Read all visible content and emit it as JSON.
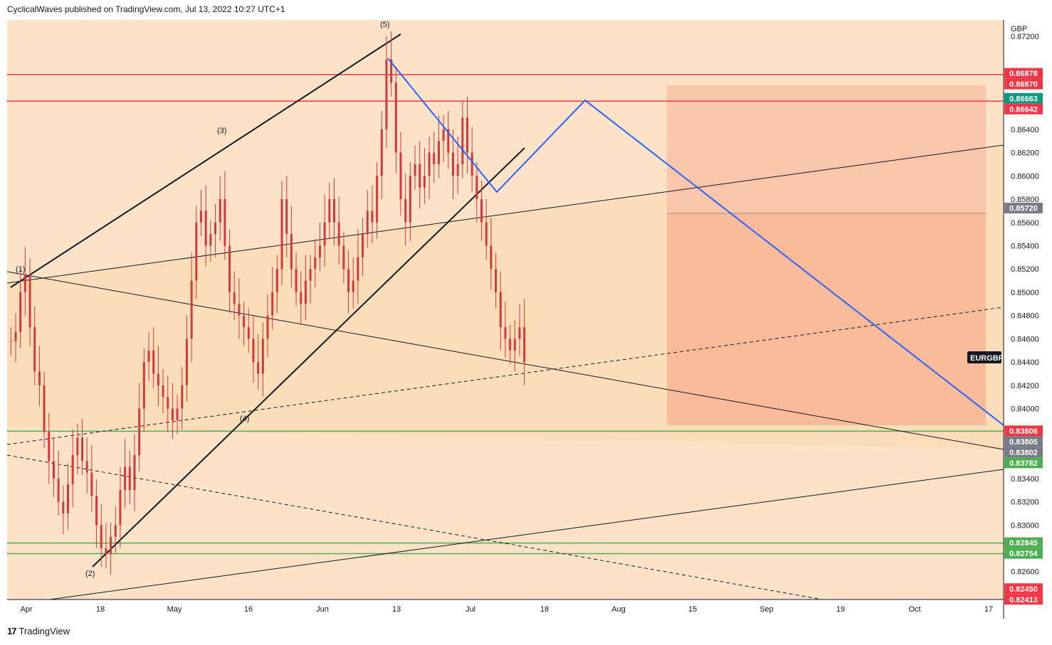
{
  "header": {
    "publisher": "CyclicalWaves published on TradingView.com, Jul 13, 2022 10:27 UTC+1"
  },
  "footer": {
    "brand": "TradingView",
    "logo_glyph": "17"
  },
  "chart_data": {
    "type": "candlestick",
    "symbol": "EURGBP",
    "currency": "GBP",
    "y_range": [
      0.8236,
      0.8734
    ],
    "y_ticks": [
      "0.87200",
      "0.86400",
      "0.86200",
      "0.86000",
      "0.85800",
      "0.85600",
      "0.85400",
      "0.85200",
      "0.85000",
      "0.84800",
      "0.84600",
      "0.84400",
      "0.84200",
      "0.84000",
      "0.83400",
      "0.83200",
      "0.83000",
      "0.82600"
    ],
    "x_ticks": [
      "Apr",
      "18",
      "May",
      "16",
      "Jun",
      "13",
      "Jul",
      "18",
      "Aug",
      "15",
      "Sep",
      "19",
      "Oct",
      "17"
    ],
    "price_badges": [
      {
        "label": "0.86878",
        "color": "#f23645"
      },
      {
        "label": "0.86870",
        "color": "#f23645"
      },
      {
        "label": "0.86663",
        "color": "#089981"
      },
      {
        "label": "0.86642",
        "color": "#f23645"
      },
      {
        "label": "0.85720",
        "color": "#787b86"
      },
      {
        "label": "0.83806",
        "color": "#f23645"
      },
      {
        "label": "0.83805",
        "color": "#787b86"
      },
      {
        "label": "0.83802",
        "color": "#787b86"
      },
      {
        "label": "0.83782",
        "color": "#4caf50"
      },
      {
        "label": "0.82845",
        "color": "#4caf50"
      },
      {
        "label": "0.82754",
        "color": "#4caf50"
      },
      {
        "label": "0.82450",
        "color": "#f23645"
      },
      {
        "label": "0.82413",
        "color": "#f23645"
      }
    ],
    "horizontal_levels": [
      {
        "value": 0.8687,
        "color": "#f23645"
      },
      {
        "value": 0.86642,
        "color": "#f23645"
      },
      {
        "value": 0.83806,
        "color": "#4caf50"
      },
      {
        "value": 0.82845,
        "color": "#4caf50"
      },
      {
        "value": 0.82754,
        "color": "#4caf50"
      }
    ],
    "wave_labels": [
      "(1)",
      "(2)",
      "(3)",
      "(4)",
      "(5)"
    ],
    "symbol_tag": "EURGBP",
    "colors": {
      "candle": "#d23a3a",
      "background_band": "#fce3c8",
      "target_zone": "#f9a98b",
      "projection": "#2962ff"
    },
    "candles_close_path": [
      0.8458,
      0.8466,
      0.85,
      0.8515,
      0.847,
      0.8432,
      0.842,
      0.838,
      0.8355,
      0.834,
      0.832,
      0.831,
      0.8335,
      0.836,
      0.8375,
      0.8355,
      0.8345,
      0.8325,
      0.83,
      0.828,
      0.8275,
      0.829,
      0.83,
      0.833,
      0.835,
      0.833,
      0.836,
      0.84,
      0.844,
      0.845,
      0.843,
      0.842,
      0.841,
      0.84,
      0.839,
      0.84,
      0.842,
      0.846,
      0.851,
      0.856,
      0.857,
      0.854,
      0.855,
      0.856,
      0.858,
      0.854,
      0.85,
      0.849,
      0.848,
      0.847,
      0.846,
      0.844,
      0.843,
      0.846,
      0.848,
      0.85,
      0.852,
      0.858,
      0.855,
      0.852,
      0.85,
      0.849,
      0.851,
      0.852,
      0.853,
      0.854,
      0.856,
      0.858,
      0.856,
      0.854,
      0.852,
      0.85,
      0.851,
      0.853,
      0.855,
      0.857,
      0.856,
      0.86,
      0.864,
      0.87,
      0.868,
      0.862,
      0.858,
      0.856,
      0.86,
      0.861,
      0.859,
      0.86,
      0.862,
      0.861,
      0.863,
      0.864,
      0.862,
      0.86,
      0.861,
      0.865,
      0.862,
      0.86,
      0.858,
      0.856,
      0.854,
      0.852,
      0.85,
      0.847,
      0.846,
      0.845,
      0.846,
      0.847,
      0.844
    ]
  }
}
